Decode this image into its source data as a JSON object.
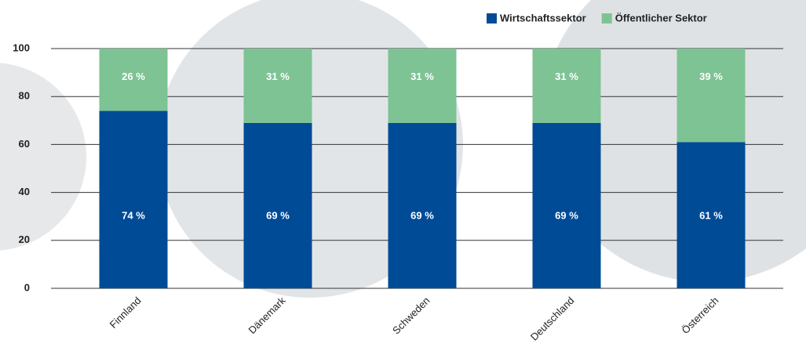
{
  "chart_data": {
    "type": "bar",
    "stacked": true,
    "categories": [
      "Finnland",
      "Dänemark",
      "Schweden",
      "Deutschland",
      "Österreich"
    ],
    "series": [
      {
        "name": "Wirtschaftssektor",
        "color": "#004b96",
        "values": [
          74,
          69,
          69,
          69,
          61
        ],
        "value_labels": [
          "74 %",
          "69 %",
          "69 %",
          "69 %",
          "61 %"
        ]
      },
      {
        "name": "Öffentlicher Sektor",
        "color": "#7dc394",
        "values": [
          26,
          31,
          31,
          31,
          39
        ],
        "value_labels": [
          "26 %",
          "31 %",
          "31 %",
          "31 %",
          "39 %"
        ]
      }
    ],
    "ylim": [
      0,
      100
    ],
    "yticks": [
      0,
      20,
      40,
      60,
      80,
      100
    ],
    "grid": true
  }
}
